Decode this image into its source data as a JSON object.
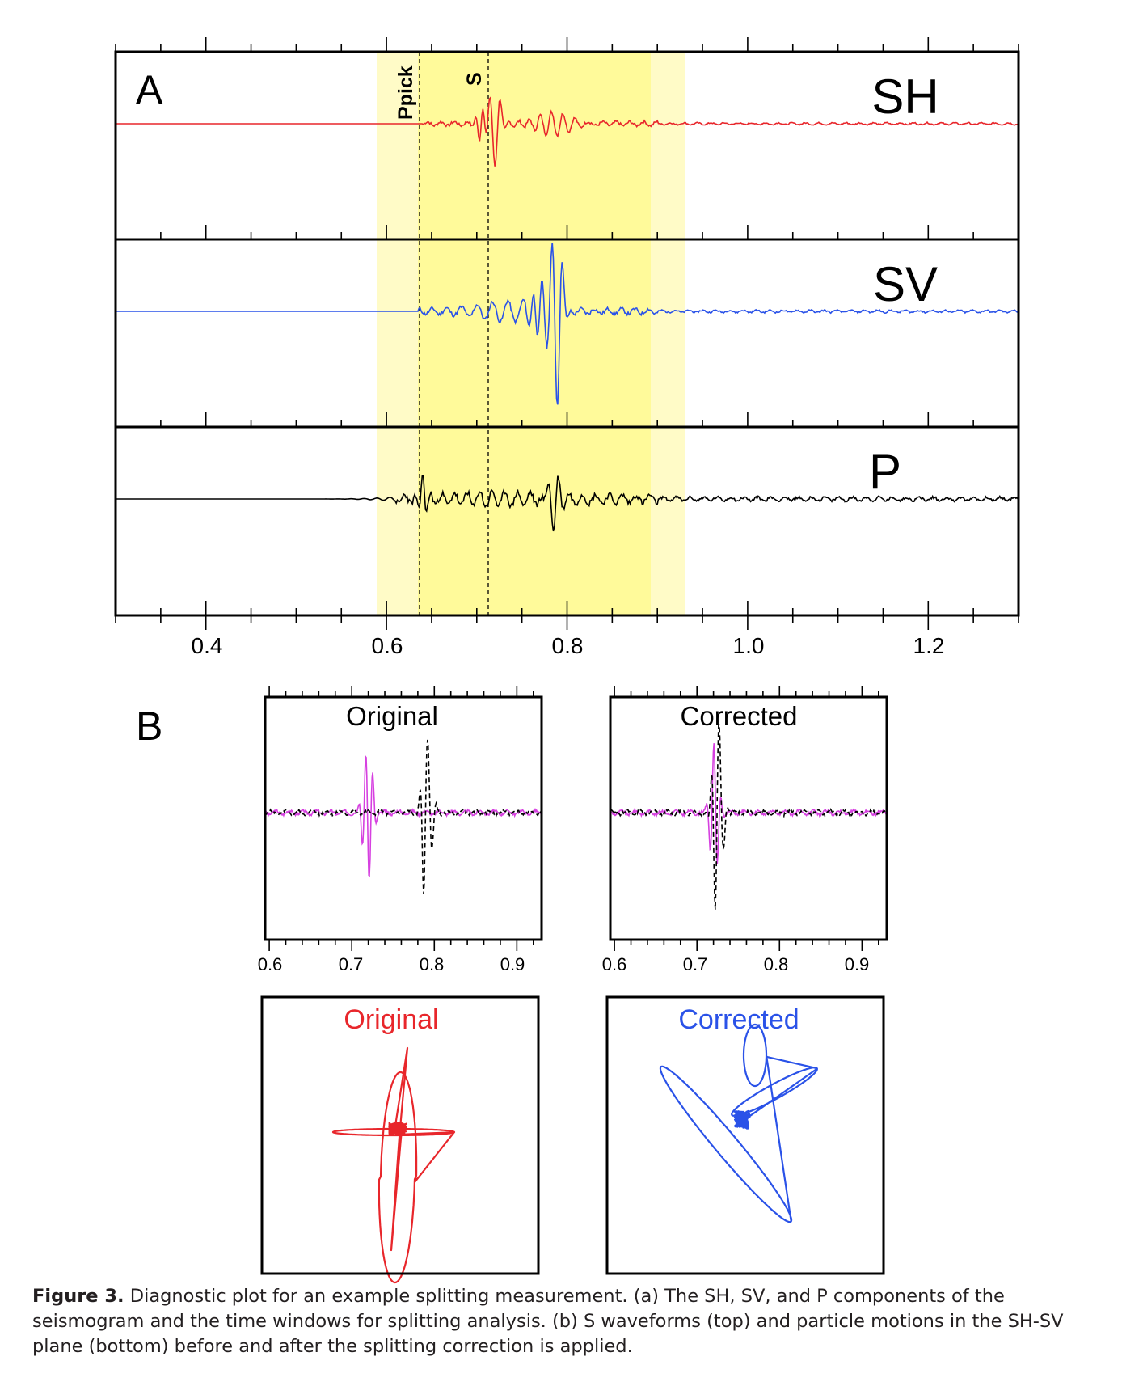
{
  "panel_a": {
    "label": "A",
    "x_ticks": [
      "0.4",
      "0.6",
      "0.8",
      "1.0",
      "1.2"
    ],
    "markers": {
      "ppick": "Ppick",
      "s": "S"
    }
  },
  "panel_b": {
    "label": "B",
    "wave_titles": [
      "Original",
      "Corrected"
    ],
    "pm_titles": [
      "Original",
      "Corrected"
    ],
    "x_ticks": [
      "0.6",
      "0.7",
      "0.8",
      "0.9"
    ]
  },
  "colors": {
    "sh": "#e8262b",
    "sv": "#2a52e8",
    "p": "#000000",
    "magenta": "#d640e0",
    "window_outer": "#fffbc7",
    "window_inner": "#fffa9a"
  },
  "caption": {
    "figure_label": "Figure 3.",
    "text": "Diagnostic plot for an example splitting measurement. (a) The SH, SV, and P components of the seismogram and the time windows for splitting analysis. (b) S waveforms (top) and particle motions in the SH-SV plane (bottom) before and after the splitting correction is applied."
  },
  "chart_data": [
    {
      "type": "line",
      "panel": "A",
      "xlim": [
        0.3,
        1.3
      ],
      "x_ticks": [
        0.4,
        0.6,
        0.8,
        1.0,
        1.2
      ],
      "grid": false,
      "series": [
        {
          "name": "SH",
          "onset": 0.64,
          "peak_time": 0.72,
          "trough_time": 0.725
        },
        {
          "name": "SV",
          "onset": 0.63,
          "peak_time": 0.795,
          "trough_time": 0.785
        },
        {
          "name": "P",
          "onset": 0.61,
          "peak_time": 0.79,
          "trough_time": 0.785
        }
      ],
      "windows": {
        "outer": [
          0.595,
          0.93
        ],
        "inner": [
          0.635,
          0.89
        ]
      },
      "markers": [
        {
          "label": "Ppick",
          "x": 0.637
        },
        {
          "label": "S",
          "x": 0.713
        }
      ]
    },
    {
      "type": "line",
      "panel": "B-original",
      "title": "Original",
      "xlim": [
        0.595,
        0.93
      ],
      "x_ticks": [
        0.6,
        0.7,
        0.8,
        0.9
      ],
      "series": [
        {
          "style": "solid-magenta",
          "peak_time": 0.72
        },
        {
          "style": "dashed-black",
          "peak_time": 0.79
        }
      ]
    },
    {
      "type": "line",
      "panel": "B-corrected",
      "title": "Corrected",
      "xlim": [
        0.595,
        0.93
      ],
      "x_ticks": [
        0.6,
        0.7,
        0.8,
        0.9
      ],
      "series": [
        {
          "style": "solid-magenta",
          "peak_time": 0.72
        },
        {
          "style": "dashed-black",
          "peak_time": 0.725
        }
      ]
    },
    {
      "type": "scatter",
      "panel": "particle-motion-original",
      "title": "Original",
      "motion": "cross-shaped (linear in two orthogonal directions)"
    },
    {
      "type": "scatter",
      "panel": "particle-motion-corrected",
      "title": "Corrected",
      "motion": "elongated ellipse along a single diagonal direction"
    }
  ]
}
